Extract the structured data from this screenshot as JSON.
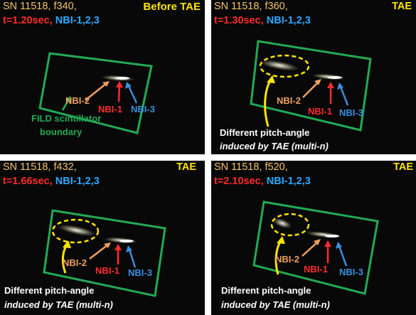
{
  "panels": [
    {
      "title": "SN 11518, f340,",
      "label": "Before TAE",
      "time": "t=1.20sec,",
      "nbi": "NBI-1,2,3",
      "beam_labels": {
        "nbi2": "NBI-2",
        "nbi1": "NBI-1",
        "nbi3": "NBI-3"
      },
      "annotation": [
        "FILD scintillator",
        "boundary"
      ]
    },
    {
      "title": "SN 11518, f360,",
      "label": "TAE",
      "time": "t=1.30sec,",
      "nbi": "NBI-1,2,3",
      "beam_labels": {
        "nbi2": "NBI-2",
        "nbi1": "NBI-1",
        "nbi3": "NBI-3"
      },
      "caption_line1": "Different pitch-angle",
      "caption_line2": "induced by TAE (multi-n)"
    },
    {
      "title": "SN 11518, f432,",
      "label": "TAE",
      "time": "t=1.66sec,",
      "nbi": "NBI-1,2,3",
      "beam_labels": {
        "nbi2": "NBI-2",
        "nbi1": "NBI-1",
        "nbi3": "NBI-3"
      },
      "caption_line1": "Different pitch-angle",
      "caption_line2": "induced by TAE (multi-n)"
    },
    {
      "title": "SN 11518, f520,",
      "label": "TAE",
      "time": "t=2.10sec,",
      "nbi": "NBI-1,2,3",
      "beam_labels": {
        "nbi2": "NBI-2",
        "nbi1": "NBI-1",
        "nbi3": "NBI-3"
      },
      "caption_line1": "Different pitch-angle",
      "caption_line2": "induced by TAE (multi-n)"
    }
  ],
  "colors": {
    "title": "#f2c46a",
    "label": "#ffe500",
    "time": "#ff2b2b",
    "nbi": "#2ba8ff",
    "boundary": "#22aa55",
    "nbi2_arrow": "#f0a060",
    "nbi1_arrow": "#ff2b2b",
    "nbi3_arrow": "#3a8fe0",
    "ellipse": "#ffe500"
  }
}
